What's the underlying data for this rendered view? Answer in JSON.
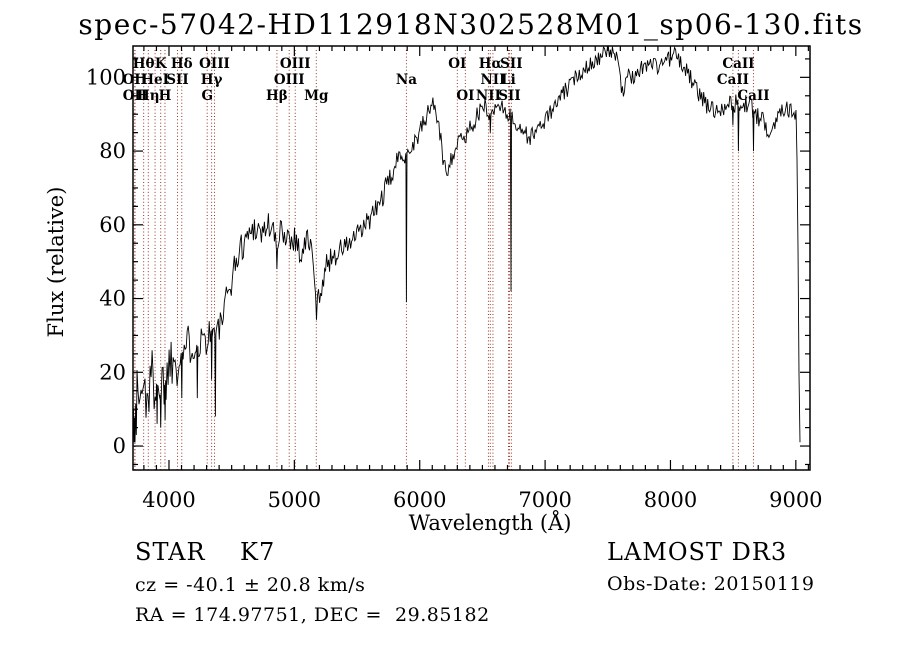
{
  "title": "spec-57042-HD112918N302528M01_sp06-130.fits",
  "axes": {
    "xlabel": "Wavelength (Å)",
    "ylabel": "Flux (relative)",
    "x_ticks": [
      4000,
      5000,
      6000,
      7000,
      8000,
      9000
    ],
    "y_ticks": [
      0,
      20,
      40,
      60,
      80,
      100
    ],
    "x_minor_step": 100,
    "y_minor_step": 5
  },
  "annotations": {
    "class_label": "STAR    K7",
    "cz": "cz = -40.1 ± 20.8 km/s",
    "radec": "RA = 174.97751, DEC =  29.85182",
    "survey": "LAMOST DR3",
    "obs_date": "Obs-Date: 20150119"
  },
  "colors": {
    "marker_line": "#993322",
    "spectrum": "#000000",
    "frame": "#000000"
  },
  "spectral_lines": [
    {
      "name": "OII",
      "wl": 3727,
      "row": 2
    },
    {
      "name": "OII",
      "wl": 3729,
      "row": 3
    },
    {
      "name": "Hθ",
      "wl": 3798,
      "row": 1
    },
    {
      "name": "Hη",
      "wl": 3835,
      "row": 3
    },
    {
      "name": "HeI",
      "wl": 3889,
      "row": 2
    },
    {
      "name": "K",
      "wl": 3934,
      "row": 1
    },
    {
      "name": "H",
      "wl": 3968,
      "row": 3
    },
    {
      "name": "SII",
      "wl": 4068,
      "row": 2
    },
    {
      "name": "Hδ",
      "wl": 4102,
      "row": 1
    },
    {
      "name": "G",
      "wl": 4305,
      "row": 3
    },
    {
      "name": "Hγ",
      "wl": 4340,
      "row": 2
    },
    {
      "name": "OIII",
      "wl": 4363,
      "row": 1
    },
    {
      "name": "Hβ",
      "wl": 4861,
      "row": 3
    },
    {
      "name": "OIII",
      "wl": 4959,
      "row": 2
    },
    {
      "name": "OIII",
      "wl": 5007,
      "row": 1
    },
    {
      "name": "Mg",
      "wl": 5175,
      "row": 3
    },
    {
      "name": "Na",
      "wl": 5894,
      "row": 2
    },
    {
      "name": "OI",
      "wl": 6300,
      "row": 1
    },
    {
      "name": "OI",
      "wl": 6364,
      "row": 3
    },
    {
      "name": "NII",
      "wl": 6548,
      "row": 3
    },
    {
      "name": "Hα",
      "wl": 6563,
      "row": 1
    },
    {
      "name": "NII",
      "wl": 6584,
      "row": 2
    },
    {
      "name": "Li",
      "wl": 6708,
      "row": 2
    },
    {
      "name": "SII",
      "wl": 6716,
      "row": 3
    },
    {
      "name": "SII",
      "wl": 6731,
      "row": 1
    },
    {
      "name": "CaII",
      "wl": 8498,
      "row": 2
    },
    {
      "name": "CaII",
      "wl": 8542,
      "row": 1
    },
    {
      "name": "CaII",
      "wl": 8662,
      "row": 3
    }
  ],
  "chart_data": {
    "type": "line",
    "title": "spec-57042-HD112918N302528M01_sp06-130.fits",
    "xlabel": "Wavelength (Å)",
    "ylabel": "Flux (relative)",
    "xlim": [
      3713,
      9113
    ],
    "ylim": [
      -6.5,
      108.5
    ],
    "grid": false,
    "legend": "none",
    "noise_seed": 1337,
    "sample_step_angstrom": 8,
    "envelope": [
      [
        3713,
        12
      ],
      [
        3725,
        7
      ],
      [
        3740,
        14
      ],
      [
        3755,
        11
      ],
      [
        3770,
        16
      ],
      [
        3785,
        13
      ],
      [
        3800,
        16
      ],
      [
        3815,
        14
      ],
      [
        3830,
        16
      ],
      [
        3845,
        15
      ],
      [
        3860,
        18
      ],
      [
        3875,
        17
      ],
      [
        3890,
        19
      ],
      [
        3905,
        16
      ],
      [
        3920,
        18
      ],
      [
        3934,
        12
      ],
      [
        3948,
        19
      ],
      [
        3960,
        16
      ],
      [
        3975,
        18
      ],
      [
        3990,
        21
      ],
      [
        4005,
        23
      ],
      [
        4020,
        24
      ],
      [
        4035,
        23
      ],
      [
        4050,
        25
      ],
      [
        4065,
        23
      ],
      [
        4080,
        25
      ],
      [
        4095,
        24
      ],
      [
        4110,
        26
      ],
      [
        4130,
        27
      ],
      [
        4150,
        27
      ],
      [
        4170,
        28
      ],
      [
        4190,
        28
      ],
      [
        4210,
        28
      ],
      [
        4230,
        27
      ],
      [
        4250,
        29
      ],
      [
        4270,
        30
      ],
      [
        4290,
        29
      ],
      [
        4310,
        30
      ],
      [
        4330,
        31
      ],
      [
        4350,
        32
      ],
      [
        4370,
        30
      ],
      [
        4390,
        31
      ],
      [
        4410,
        33
      ],
      [
        4430,
        35
      ],
      [
        4450,
        38
      ],
      [
        4470,
        41
      ],
      [
        4490,
        44
      ],
      [
        4510,
        47
      ],
      [
        4530,
        49
      ],
      [
        4550,
        52
      ],
      [
        4570,
        53
      ],
      [
        4590,
        55
      ],
      [
        4610,
        56
      ],
      [
        4630,
        57
      ],
      [
        4650,
        58
      ],
      [
        4670,
        59
      ],
      [
        4690,
        60
      ],
      [
        4710,
        59
      ],
      [
        4730,
        58
      ],
      [
        4750,
        58
      ],
      [
        4770,
        59
      ],
      [
        4790,
        60
      ],
      [
        4810,
        60
      ],
      [
        4830,
        58
      ],
      [
        4850,
        55
      ],
      [
        4861,
        52
      ],
      [
        4875,
        56
      ],
      [
        4890,
        58
      ],
      [
        4905,
        59
      ],
      [
        4920,
        58
      ],
      [
        4940,
        57
      ],
      [
        4960,
        57
      ],
      [
        4980,
        56
      ],
      [
        5000,
        57
      ],
      [
        5020,
        55
      ],
      [
        5040,
        53
      ],
      [
        5060,
        52
      ],
      [
        5080,
        54
      ],
      [
        5100,
        56
      ],
      [
        5120,
        56
      ],
      [
        5140,
        52
      ],
      [
        5160,
        45
      ],
      [
        5175,
        37
      ],
      [
        5190,
        39
      ],
      [
        5210,
        43
      ],
      [
        5230,
        46
      ],
      [
        5250,
        48
      ],
      [
        5270,
        50
      ],
      [
        5290,
        51
      ],
      [
        5310,
        52
      ],
      [
        5330,
        52
      ],
      [
        5350,
        53
      ],
      [
        5370,
        53
      ],
      [
        5390,
        54
      ],
      [
        5410,
        54
      ],
      [
        5430,
        55
      ],
      [
        5450,
        55
      ],
      [
        5470,
        56
      ],
      [
        5490,
        57
      ],
      [
        5510,
        57
      ],
      [
        5530,
        58
      ],
      [
        5550,
        59
      ],
      [
        5570,
        60
      ],
      [
        5590,
        61
      ],
      [
        5610,
        62
      ],
      [
        5630,
        63
      ],
      [
        5650,
        64
      ],
      [
        5670,
        65
      ],
      [
        5690,
        67
      ],
      [
        5710,
        68
      ],
      [
        5730,
        70
      ],
      [
        5750,
        71
      ],
      [
        5770,
        73
      ],
      [
        5790,
        75
      ],
      [
        5810,
        76
      ],
      [
        5830,
        78
      ],
      [
        5850,
        79
      ],
      [
        5870,
        80
      ],
      [
        5890,
        79
      ],
      [
        5910,
        80
      ],
      [
        5930,
        81
      ],
      [
        5950,
        82
      ],
      [
        5970,
        83
      ],
      [
        5990,
        85
      ],
      [
        6010,
        86
      ],
      [
        6030,
        87
      ],
      [
        6050,
        89
      ],
      [
        6070,
        91
      ],
      [
        6090,
        92
      ],
      [
        6110,
        93
      ],
      [
        6130,
        91
      ],
      [
        6150,
        87
      ],
      [
        6170,
        82
      ],
      [
        6190,
        77
      ],
      [
        6210,
        75
      ],
      [
        6230,
        76
      ],
      [
        6250,
        78
      ],
      [
        6270,
        80
      ],
      [
        6290,
        81
      ],
      [
        6310,
        82
      ],
      [
        6330,
        83
      ],
      [
        6350,
        84
      ],
      [
        6370,
        84
      ],
      [
        6390,
        86
      ],
      [
        6410,
        87
      ],
      [
        6430,
        88
      ],
      [
        6450,
        89
      ],
      [
        6470,
        90
      ],
      [
        6490,
        91
      ],
      [
        6510,
        92
      ],
      [
        6530,
        92
      ],
      [
        6550,
        91
      ],
      [
        6570,
        89
      ],
      [
        6590,
        91
      ],
      [
        6610,
        92
      ],
      [
        6630,
        93
      ],
      [
        6650,
        92
      ],
      [
        6670,
        92
      ],
      [
        6690,
        91
      ],
      [
        6710,
        90
      ],
      [
        6730,
        89
      ],
      [
        6750,
        88
      ],
      [
        6770,
        87
      ],
      [
        6790,
        87
      ],
      [
        6810,
        86
      ],
      [
        6830,
        85
      ],
      [
        6850,
        85
      ],
      [
        6870,
        83
      ],
      [
        6890,
        84
      ],
      [
        6910,
        85
      ],
      [
        6930,
        86
      ],
      [
        6950,
        86
      ],
      [
        6970,
        87
      ],
      [
        6990,
        88
      ],
      [
        7010,
        89
      ],
      [
        7030,
        90
      ],
      [
        7060,
        91
      ],
      [
        7090,
        93
      ],
      [
        7120,
        94
      ],
      [
        7150,
        96
      ],
      [
        7180,
        97
      ],
      [
        7210,
        98
      ],
      [
        7240,
        100
      ],
      [
        7270,
        101
      ],
      [
        7300,
        102
      ],
      [
        7330,
        103
      ],
      [
        7360,
        104
      ],
      [
        7390,
        104
      ],
      [
        7420,
        105
      ],
      [
        7450,
        106
      ],
      [
        7480,
        106
      ],
      [
        7510,
        107
      ],
      [
        7540,
        107
      ],
      [
        7570,
        106
      ],
      [
        7590,
        106
      ],
      [
        7605,
        98
      ],
      [
        7620,
        95
      ],
      [
        7640,
        98
      ],
      [
        7660,
        100
      ],
      [
        7680,
        100
      ],
      [
        7700,
        100
      ],
      [
        7720,
        101
      ],
      [
        7740,
        102
      ],
      [
        7760,
        102
      ],
      [
        7780,
        103
      ],
      [
        7800,
        103
      ],
      [
        7820,
        104
      ],
      [
        7840,
        104
      ],
      [
        7860,
        104
      ],
      [
        7880,
        103
      ],
      [
        7900,
        103
      ],
      [
        7920,
        104
      ],
      [
        7940,
        104
      ],
      [
        7960,
        105
      ],
      [
        7980,
        105
      ],
      [
        8000,
        105
      ],
      [
        8020,
        106
      ],
      [
        8040,
        106
      ],
      [
        8060,
        105
      ],
      [
        8080,
        104
      ],
      [
        8100,
        103
      ],
      [
        8120,
        102
      ],
      [
        8140,
        101
      ],
      [
        8160,
        100
      ],
      [
        8180,
        98
      ],
      [
        8200,
        97
      ],
      [
        8220,
        96
      ],
      [
        8240,
        95
      ],
      [
        8260,
        94
      ],
      [
        8280,
        93
      ],
      [
        8300,
        92
      ],
      [
        8320,
        92
      ],
      [
        8340,
        91
      ],
      [
        8360,
        91
      ],
      [
        8380,
        92
      ],
      [
        8400,
        92
      ],
      [
        8420,
        92
      ],
      [
        8440,
        93
      ],
      [
        8460,
        93
      ],
      [
        8480,
        93
      ],
      [
        8500,
        92
      ],
      [
        8520,
        93
      ],
      [
        8540,
        92
      ],
      [
        8560,
        92
      ],
      [
        8580,
        92
      ],
      [
        8600,
        93
      ],
      [
        8620,
        93
      ],
      [
        8640,
        92
      ],
      [
        8660,
        91
      ],
      [
        8680,
        90
      ],
      [
        8700,
        89
      ],
      [
        8720,
        88
      ],
      [
        8740,
        88
      ],
      [
        8760,
        87
      ],
      [
        8780,
        86
      ],
      [
        8800,
        86
      ],
      [
        8820,
        87
      ],
      [
        8840,
        88
      ],
      [
        8860,
        90
      ],
      [
        8880,
        91
      ],
      [
        8900,
        92
      ],
      [
        8920,
        93
      ],
      [
        8940,
        92
      ],
      [
        8960,
        91
      ],
      [
        8980,
        90
      ],
      [
        9000,
        89
      ],
      [
        9008,
        87
      ],
      [
        9014,
        45
      ],
      [
        9018,
        60
      ],
      [
        9022,
        15
      ],
      [
        9026,
        20
      ],
      [
        9030,
        3
      ],
      [
        9034,
        1
      ]
    ],
    "noise_amplitude": [
      [
        3713,
        13
      ],
      [
        3800,
        11
      ],
      [
        3950,
        8
      ],
      [
        4150,
        6
      ],
      [
        4400,
        4.5
      ],
      [
        4900,
        4
      ],
      [
        5200,
        3.5
      ],
      [
        5700,
        3
      ],
      [
        6300,
        2.6
      ],
      [
        7000,
        2.2
      ],
      [
        8200,
        2.4
      ],
      [
        9034,
        2.8
      ]
    ],
    "absorption_spikes": [
      [
        3722,
        1
      ],
      [
        3739,
        3
      ],
      [
        3905,
        6
      ],
      [
        3934,
        5
      ],
      [
        3969,
        7
      ],
      [
        4102,
        13
      ],
      [
        4226,
        13
      ],
      [
        4340,
        18
      ],
      [
        4370,
        8
      ],
      [
        4861,
        48
      ],
      [
        5894,
        39
      ],
      [
        6563,
        85
      ],
      [
        6728,
        42
      ],
      [
        8498,
        87
      ],
      [
        8542,
        80
      ],
      [
        8662,
        80
      ]
    ]
  }
}
